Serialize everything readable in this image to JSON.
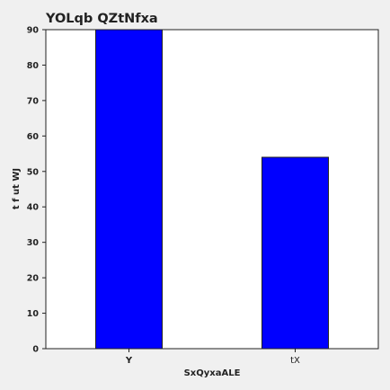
{
  "chart_data": {
    "type": "bar",
    "title": "YOLqb QZtNfxa",
    "xlabel": "SxQyxaALE",
    "ylabel": "t f  ut WJ",
    "categories": [
      "Y",
      "tX"
    ],
    "values": [
      90,
      54
    ],
    "ylim": [
      0,
      90
    ],
    "yticks": [
      0,
      10,
      20,
      30,
      40,
      50,
      60,
      70,
      80,
      90
    ],
    "bar_color": "#0000ff",
    "grid": false,
    "legend": "none"
  }
}
